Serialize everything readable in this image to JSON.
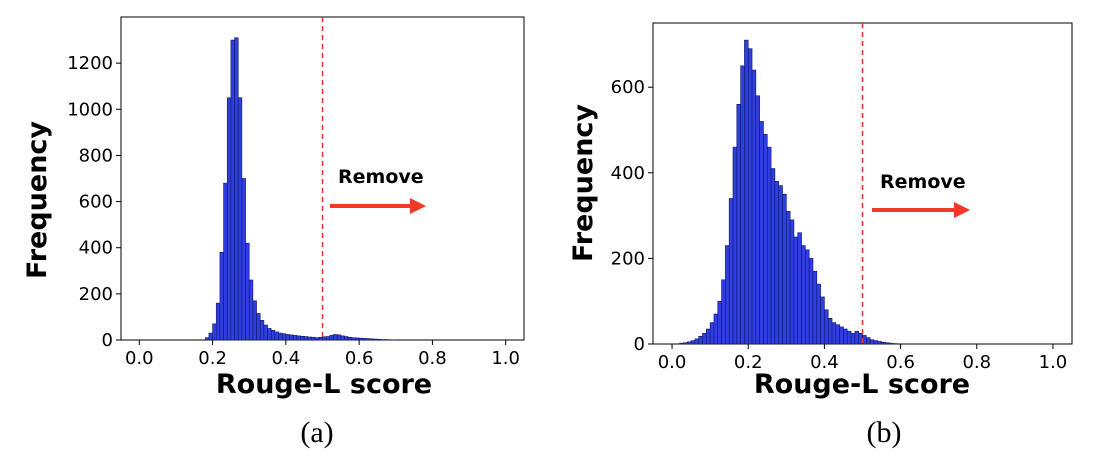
{
  "chart_data": [
    {
      "type": "bar",
      "panel_label": "(a)",
      "xlabel": "Rouge-L score",
      "ylabel": "Frequency",
      "xlim": [
        -0.05,
        1.05
      ],
      "ylim": [
        0,
        1400
      ],
      "xticks": [
        0.0,
        0.2,
        0.4,
        0.6,
        0.8,
        1.0
      ],
      "xtick_labels": [
        "0.0",
        "0.2",
        "0.4",
        "0.6",
        "0.8",
        "1.0"
      ],
      "yticks": [
        0,
        200,
        400,
        600,
        800,
        1000,
        1200
      ],
      "ytick_labels": [
        "0",
        "200",
        "400",
        "600",
        "800",
        "1000",
        "1200"
      ],
      "bin_start": 0.18,
      "bin_width": 0.01,
      "values": [
        10,
        30,
        70,
        160,
        380,
        680,
        1050,
        1300,
        1310,
        1050,
        700,
        420,
        260,
        170,
        115,
        85,
        65,
        50,
        42,
        35,
        30,
        27,
        24,
        22,
        20,
        18,
        16,
        15,
        13,
        12,
        10,
        12,
        14,
        15,
        20,
        24,
        22,
        18,
        15,
        12,
        10,
        9,
        8,
        7,
        6,
        5,
        4,
        3,
        2,
        2,
        1,
        1
      ],
      "threshold": 0.5,
      "annotation": "Remove",
      "bar_color": "#2f3ee0",
      "edge_color": "#10166e",
      "threshold_color": "#e8342b",
      "arrow_color": "#f03a26"
    },
    {
      "type": "bar",
      "panel_label": "(b)",
      "xlabel": "Rouge-L score",
      "ylabel": "Frequency",
      "xlim": [
        -0.05,
        1.05
      ],
      "ylim": [
        0,
        750
      ],
      "xticks": [
        0.0,
        0.2,
        0.4,
        0.6,
        0.8,
        1.0
      ],
      "xtick_labels": [
        "0.0",
        "0.2",
        "0.4",
        "0.6",
        "0.8",
        "1.0"
      ],
      "yticks": [
        0,
        200,
        400,
        600
      ],
      "ytick_labels": [
        "0",
        "200",
        "400",
        "600"
      ],
      "bin_start": 0.02,
      "bin_width": 0.01,
      "values": [
        2,
        3,
        5,
        8,
        12,
        18,
        25,
        35,
        50,
        70,
        100,
        150,
        230,
        340,
        460,
        560,
        650,
        710,
        690,
        640,
        580,
        520,
        490,
        460,
        410,
        380,
        370,
        350,
        310,
        290,
        250,
        260,
        230,
        220,
        200,
        170,
        140,
        110,
        80,
        60,
        50,
        45,
        40,
        35,
        30,
        25,
        30,
        25,
        20,
        15,
        10,
        8,
        6,
        4,
        3,
        2,
        1
      ],
      "threshold": 0.5,
      "annotation": "Remove",
      "bar_color": "#2f3ee0",
      "edge_color": "#10166e",
      "threshold_color": "#e8342b",
      "arrow_color": "#f03a26"
    }
  ]
}
